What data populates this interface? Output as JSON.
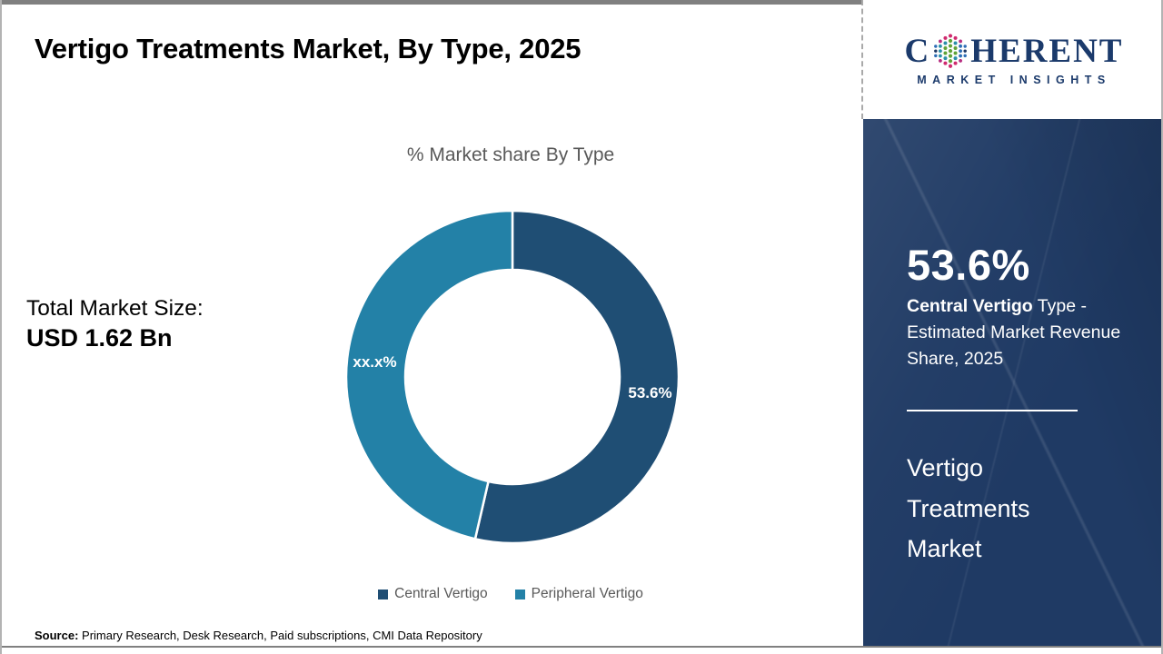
{
  "page": {
    "title": "Vertigo Treatments Market, By Type, 2025",
    "source_label": "Source:",
    "source_text": " Primary Research, Desk Research, Paid subscriptions, CMI Data Repository"
  },
  "logo": {
    "prefix": "C",
    "suffix": "HERENT",
    "subtitle": "MARKET INSIGHTS"
  },
  "left_panel": {
    "total_label": "Total Market Size:",
    "total_value": "USD 1.62 Bn"
  },
  "chart_data": {
    "type": "pie",
    "donut": true,
    "title": "% Market share By Type",
    "categories": [
      "Central Vertigo",
      "Peripheral Vertigo"
    ],
    "values": [
      53.6,
      46.4
    ],
    "labels": [
      "53.6%",
      "xx.x%"
    ],
    "colors": [
      "#1f4e74",
      "#2381a7"
    ],
    "start_angle_deg": 0,
    "legend_position": "bottom"
  },
  "sidebar": {
    "stat_value": "53.6%",
    "stat_bold": "Central Vertigo",
    "stat_rest": " Type - Estimated Market Revenue Share, 2025",
    "market_name": "Vertigo Treatments Market",
    "background_color": "#1f3a64",
    "divider_color": "#ffffff"
  }
}
